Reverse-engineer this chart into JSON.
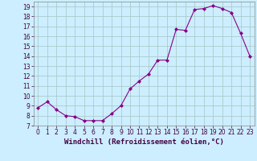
{
  "x": [
    0,
    1,
    2,
    3,
    4,
    5,
    6,
    7,
    8,
    9,
    10,
    11,
    12,
    13,
    14,
    15,
    16,
    17,
    18,
    19,
    20,
    21,
    22,
    23
  ],
  "y": [
    8.8,
    9.4,
    8.6,
    8.0,
    7.9,
    7.5,
    7.5,
    7.5,
    8.2,
    9.0,
    10.7,
    11.5,
    12.2,
    13.6,
    13.6,
    16.7,
    16.6,
    18.7,
    18.8,
    19.1,
    18.8,
    18.4,
    16.3,
    14.0
  ],
  "title": "",
  "xlabel": "Windchill (Refroidissement éolien,°C)",
  "xlim": [
    -0.5,
    23.5
  ],
  "ylim": [
    7,
    19.5
  ],
  "yticks": [
    7,
    8,
    9,
    10,
    11,
    12,
    13,
    14,
    15,
    16,
    17,
    18,
    19
  ],
  "xticks": [
    0,
    1,
    2,
    3,
    4,
    5,
    6,
    7,
    8,
    9,
    10,
    11,
    12,
    13,
    14,
    15,
    16,
    17,
    18,
    19,
    20,
    21,
    22,
    23
  ],
  "line_color": "#880088",
  "marker": "D",
  "marker_size": 2,
  "bg_color": "#cceeff",
  "grid_color": "#aacccc",
  "label_fontsize": 6.5,
  "tick_fontsize": 5.5
}
